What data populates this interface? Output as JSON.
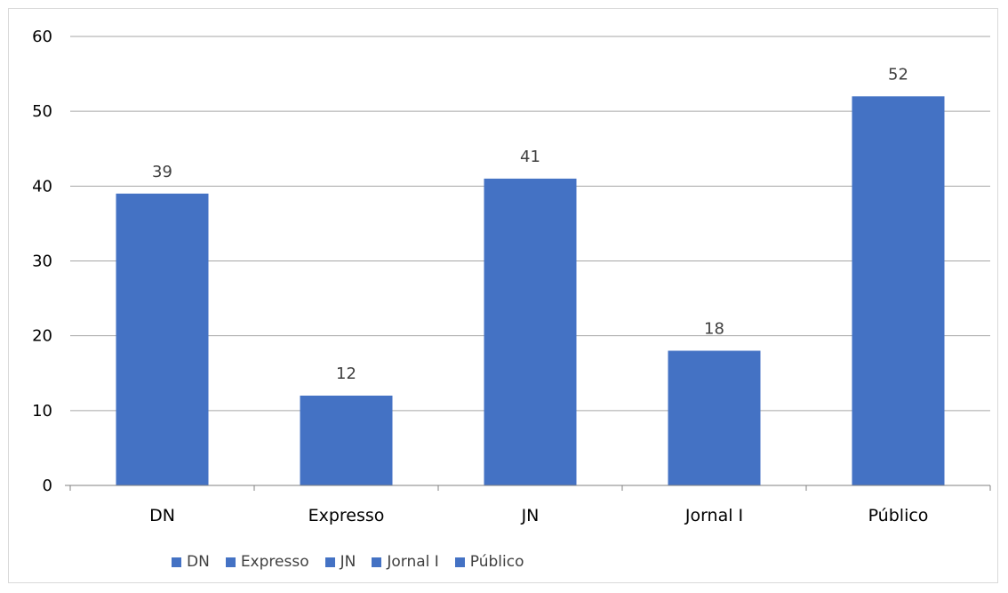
{
  "chart_data": {
    "type": "bar",
    "categories": [
      "DN",
      "Expresso",
      "JN",
      "Jornal I",
      "Público"
    ],
    "values": [
      39,
      12,
      41,
      18,
      52
    ],
    "title": "",
    "xlabel": "",
    "ylabel": "",
    "ylim": [
      0,
      60
    ],
    "yticks": [
      0,
      10,
      20,
      30,
      40,
      50,
      60
    ],
    "grid": true,
    "data_labels": true,
    "legend": {
      "placement": "bottom-left",
      "entries": [
        "DN",
        "Expresso",
        "JN",
        "Jornal I",
        "Público"
      ]
    },
    "colors": {
      "bar": "#4472C4",
      "grid": "#a6a6a6",
      "axis": "#808080"
    }
  }
}
